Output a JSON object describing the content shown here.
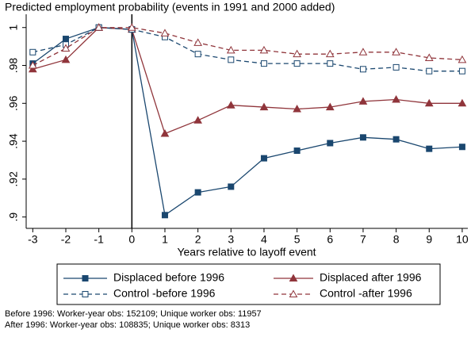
{
  "chart_data": {
    "type": "line",
    "title": "Predicted employment probability (events in 1991 and 2000 added)",
    "x_label": "Years relative to layoff event",
    "x": [
      -3,
      -2,
      -1,
      0,
      1,
      2,
      3,
      4,
      5,
      6,
      7,
      8,
      9,
      10
    ],
    "xlim": [
      -3.2,
      10.17
    ],
    "xticks": [
      -3,
      -2,
      -1,
      0,
      1,
      2,
      3,
      4,
      5,
      6,
      7,
      8,
      9,
      10
    ],
    "ylim": [
      0.894,
      1.007
    ],
    "yticks": [
      {
        "value": 0.9,
        "label": ".9"
      },
      {
        "value": 0.92,
        "label": ".92"
      },
      {
        "value": 0.94,
        "label": ".94"
      },
      {
        "value": 0.96,
        "label": ".96"
      },
      {
        "value": 0.98,
        "label": ".98"
      },
      1
    ],
    "vline": 0,
    "series": [
      {
        "name": "Displaced before 1996",
        "color": "#1a476f",
        "dash": false,
        "marker": "square",
        "filled": true,
        "values": [
          0.981,
          0.994,
          1.0,
          0.999,
          0.901,
          0.913,
          0.916,
          0.931,
          0.935,
          0.939,
          0.942,
          0.941,
          0.936,
          0.937
        ]
      },
      {
        "name": "Displaced after 1996",
        "color": "#90353b",
        "dash": false,
        "marker": "triangle",
        "filled": true,
        "values": [
          0.978,
          0.983,
          1.0,
          0.999,
          0.944,
          0.951,
          0.959,
          0.958,
          0.957,
          0.958,
          0.961,
          0.962,
          0.96,
          0.96
        ]
      },
      {
        "name": "Control -before 1996",
        "color": "#1a476f",
        "dash": true,
        "marker": "square",
        "filled": false,
        "values": [
          0.987,
          0.991,
          1.0,
          0.999,
          0.995,
          0.986,
          0.983,
          0.981,
          0.981,
          0.981,
          0.978,
          0.979,
          0.977,
          0.977
        ]
      },
      {
        "name": "Control -after 1996",
        "color": "#90353b",
        "dash": true,
        "marker": "triangle",
        "filled": false,
        "values": [
          0.98,
          0.989,
          1.0,
          1.0,
          0.997,
          0.992,
          0.988,
          0.988,
          0.986,
          0.986,
          0.987,
          0.987,
          0.984,
          0.983
        ]
      }
    ],
    "notes": [
      "Before 1996: Worker-year obs: 152109; Unique worker obs: 11957",
      "After 1996: Worker-year obs: 108835; Unique worker obs: 8313"
    ]
  }
}
